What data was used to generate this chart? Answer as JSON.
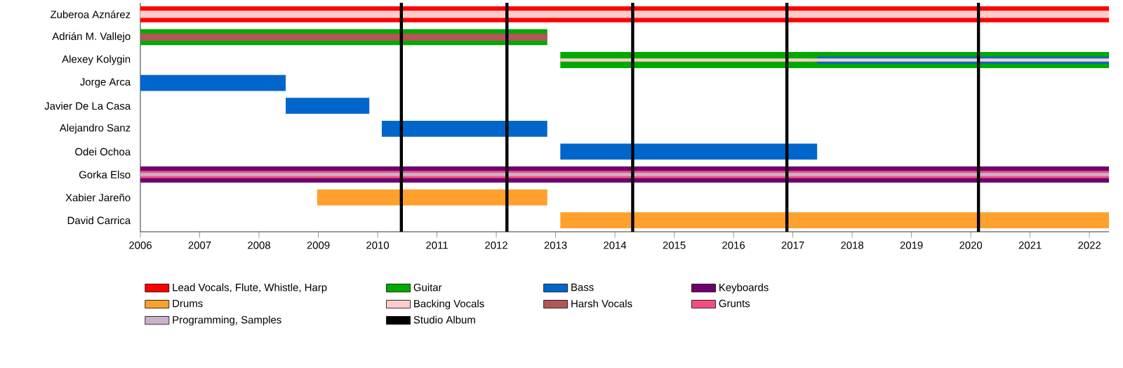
{
  "chart_data": {
    "type": "bar",
    "orientation": "horizontal",
    "legend": "bottom",
    "categories": [
      "Zuberoa Aznárez",
      "Adrián M. Vallejo",
      "Alexey Kolygin",
      "Jorge Arca",
      "Javier De La Casa",
      "Alejandro Sanz",
      "Odei Ochoa",
      "Gorka Elso",
      "Xabier Jareño",
      "David Carrica"
    ],
    "xlim": [
      2006,
      2022.33
    ],
    "xticks": [
      2006,
      2007,
      2008,
      2009,
      2010,
      2011,
      2012,
      2013,
      2014,
      2015,
      2016,
      2017,
      2018,
      2019,
      2020,
      2021,
      2022
    ],
    "series": [
      {
        "name": "Lead Vocals, Flute, Whistle, Harp",
        "color": "#ff0000",
        "base": [
          2006,
          null,
          null,
          null,
          null,
          null,
          null,
          null,
          null,
          null
        ],
        "values": [
          16.33,
          null,
          null,
          null,
          null,
          null,
          null,
          null,
          null,
          null
        ]
      },
      {
        "name": "Guitar",
        "color": "#00aa00",
        "base": [
          null,
          2006,
          2013.08,
          null,
          null,
          null,
          null,
          null,
          null,
          null
        ],
        "values": [
          null,
          6.86,
          9.25,
          null,
          null,
          null,
          null,
          null,
          null,
          null
        ]
      },
      {
        "name": "Bass",
        "color": "#0066cc",
        "base": [
          null,
          null,
          2017.41,
          2006,
          2008.45,
          2010.07,
          2013.08,
          null,
          null,
          null
        ],
        "values": [
          null,
          null,
          4.92,
          2.45,
          1.41,
          2.79,
          4.33,
          null,
          null,
          null
        ]
      },
      {
        "name": "Keyboards",
        "color": "#6e0070",
        "base": [
          null,
          null,
          null,
          null,
          null,
          null,
          null,
          2006,
          null,
          null
        ],
        "values": [
          null,
          null,
          null,
          null,
          null,
          null,
          null,
          16.33,
          null,
          null
        ]
      },
      {
        "name": "Drums",
        "color": "#ffa02c",
        "base": [
          null,
          null,
          null,
          null,
          null,
          null,
          null,
          null,
          2008.98,
          2013.08
        ],
        "values": [
          null,
          null,
          null,
          null,
          null,
          null,
          null,
          null,
          3.88,
          9.25
        ]
      },
      {
        "name": "Backing Vocals",
        "color": "#ffcccc",
        "base": [
          2006,
          null,
          2013.08,
          null,
          null,
          null,
          null,
          null,
          null,
          null
        ],
        "values": [
          16.33,
          null,
          9.25,
          null,
          null,
          null,
          null,
          null,
          null,
          null
        ]
      },
      {
        "name": "Harsh Vocals",
        "color": "#b35656",
        "base": [
          null,
          2006,
          null,
          null,
          null,
          null,
          null,
          null,
          null,
          null
        ],
        "values": [
          null,
          6.86,
          null,
          null,
          null,
          null,
          null,
          null,
          null,
          null
        ]
      },
      {
        "name": "Grunts",
        "color": "#f0507f",
        "base": [
          null,
          null,
          null,
          null,
          null,
          null,
          null,
          2006,
          null,
          null
        ],
        "values": [
          null,
          null,
          null,
          null,
          null,
          null,
          null,
          16.33,
          null,
          null
        ]
      },
      {
        "name": "Programming, Samples",
        "color": "#c8b4c8",
        "base": [
          null,
          null,
          null,
          null,
          null,
          null,
          null,
          2006,
          null,
          null
        ],
        "values": [
          null,
          null,
          null,
          null,
          null,
          null,
          null,
          16.33,
          null,
          null
        ]
      }
    ],
    "ref_lines": [
      {
        "axis": "x",
        "value": 2010.4,
        "color": "#000000",
        "label": "Studio Album"
      },
      {
        "axis": "x",
        "value": 2012.18,
        "color": "#000000"
      },
      {
        "axis": "x",
        "value": 2014.3,
        "color": "#000000"
      },
      {
        "axis": "x",
        "value": 2016.9,
        "color": "#000000"
      },
      {
        "axis": "x",
        "value": 2020.13,
        "color": "#000000"
      }
    ]
  }
}
